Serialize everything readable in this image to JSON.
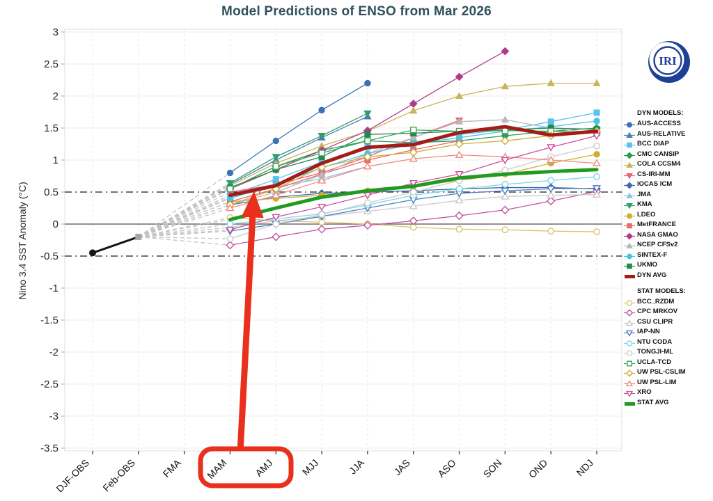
{
  "logo_text": "IRI",
  "annotation": {
    "color": "#e8301c",
    "highlighted_categories": [
      "MAM",
      "AMJ"
    ]
  },
  "chart_data": {
    "type": "line",
    "title": "Model Predictions of ENSO from Mar 2026",
    "ylabel": "Nino 3.4 SST Anomaly (°C)",
    "xlabel": "",
    "categories": [
      "DJF-OBS",
      "Feb-OBS",
      "FMA",
      "MAM",
      "AMJ",
      "MJJ",
      "JJA",
      "JAS",
      "ASO",
      "SON",
      "OND",
      "NDJ"
    ],
    "ylim": [
      -3.5,
      3
    ],
    "ytick_step": 0.5,
    "threshold_lines": [
      0.5,
      -0.5
    ],
    "zero_line": 0,
    "grid": true,
    "legend_position": "right",
    "observations": {
      "name": "OBS",
      "color": "#151515",
      "points": [
        {
          "category": "DJF-OBS",
          "value": -0.45
        },
        {
          "category": "Feb-OBS",
          "value": -0.2
        }
      ]
    },
    "forecast_start_index": 3,
    "fan": {
      "from_category": "Feb-OBS",
      "from_value": -0.2,
      "color": "#c3c3c3"
    },
    "groups": [
      {
        "header": "DYN MODELS:",
        "series": [
          {
            "name": "AUS-ACCESS",
            "color": "#3a72b5",
            "marker": "circle",
            "filled": true,
            "avg": false,
            "values": [
              0.8,
              1.3,
              1.78,
              2.2
            ]
          },
          {
            "name": "AUS-RELATIVE",
            "color": "#4a7fb5",
            "marker": "triangle-up",
            "filled": true,
            "avg": false,
            "values": [
              0.62,
              1.0,
              1.35,
              1.68
            ]
          },
          {
            "name": "BCC DIAP",
            "color": "#5bc2ef",
            "marker": "square",
            "filled": true,
            "avg": false,
            "values": [
              0.45,
              0.7,
              0.97,
              1.2,
              1.28,
              1.4,
              1.47,
              1.6,
              1.74
            ]
          },
          {
            "name": "CMC CANSIP",
            "color": "#279a55",
            "marker": "diamond",
            "filled": true,
            "avg": false,
            "values": [
              0.55,
              0.9,
              1.15,
              1.3,
              1.27,
              1.3,
              1.38,
              1.45,
              1.5
            ]
          },
          {
            "name": "COLA CCSM4",
            "color": "#c9b458",
            "marker": "triangle-up",
            "filled": true,
            "avg": false,
            "values": [
              0.6,
              0.95,
              1.22,
              1.45,
              1.77,
              2.0,
              2.15,
              2.2,
              2.2
            ]
          },
          {
            "name": "CS-IRI-MM",
            "color": "#ef6070",
            "marker": "triangle-down",
            "filled": true,
            "avg": false,
            "values": [
              0.5,
              0.62,
              0.8,
              1.05,
              1.35,
              1.62
            ]
          },
          {
            "name": "IOCAS ICM",
            "color": "#3d68ad",
            "marker": "diamond",
            "filled": true,
            "avg": false,
            "values": [
              0.3,
              0.42,
              0.48,
              0.5,
              0.52,
              0.55,
              0.57,
              0.57,
              0.55
            ]
          },
          {
            "name": "JMA",
            "color": "#85c9e8",
            "marker": "triangle-up",
            "filled": true,
            "avg": false,
            "values": [
              0.42,
              0.58,
              0.71,
              0.9
            ]
          },
          {
            "name": "KMA",
            "color": "#2f9e68",
            "marker": "triangle-down",
            "filled": true,
            "avg": false,
            "values": [
              0.64,
              1.05,
              1.38,
              1.73
            ]
          },
          {
            "name": "LDEO",
            "color": "#d1ac2e",
            "marker": "circle",
            "filled": true,
            "avg": false,
            "values": [
              0.35,
              0.4,
              0.45,
              0.52,
              0.6,
              0.68,
              0.78,
              0.95,
              1.09
            ]
          },
          {
            "name": "MetFRANCE",
            "color": "#e86a6a",
            "marker": "square",
            "filled": true,
            "avg": false,
            "values": [
              0.35,
              0.55,
              0.78,
              1.0,
              1.16,
              1.3
            ]
          },
          {
            "name": "NASA GMAO",
            "color": "#b23a8a",
            "marker": "diamond",
            "filled": true,
            "avg": false,
            "values": [
              0.55,
              0.85,
              1.15,
              1.46,
              1.88,
              2.3,
              2.7
            ]
          },
          {
            "name": "NCEP CFSv2",
            "color": "#b9b9b9",
            "marker": "triangle-up",
            "filled": true,
            "avg": false,
            "values": [
              0.3,
              0.5,
              0.77,
              1.1,
              1.35,
              1.6,
              1.63,
              1.5,
              1.42
            ]
          },
          {
            "name": "SINTEX-F",
            "color": "#49c3e6",
            "marker": "circle",
            "filled": true,
            "avg": false,
            "values": [
              0.4,
              0.62,
              0.88,
              1.1,
              1.25,
              1.35,
              1.45,
              1.52,
              1.61
            ]
          },
          {
            "name": "UKMO",
            "color": "#1f8a4c",
            "marker": "square",
            "filled": true,
            "avg": false,
            "values": [
              0.57,
              0.85,
              1.05,
              1.4,
              1.42,
              1.45,
              1.47,
              1.5,
              1.48
            ]
          },
          {
            "name": "DYN AVG",
            "color": "#a31c15",
            "marker": "avg-line",
            "filled": true,
            "avg": true,
            "values": [
              0.45,
              0.6,
              0.95,
              1.2,
              1.24,
              1.43,
              1.52,
              1.39,
              1.45
            ]
          }
        ]
      },
      {
        "header": "STAT MODELS:",
        "series": [
          {
            "name": "BCC_RZDM",
            "color": "#d9c36a",
            "marker": "circle",
            "filled": false,
            "avg": false,
            "values": [
              0.1,
              0.05,
              0.03,
              0.0,
              -0.05,
              -0.08,
              -0.09,
              -0.11,
              -0.12
            ]
          },
          {
            "name": "CPC MRKOV",
            "color": "#c2549e",
            "marker": "diamond",
            "filled": false,
            "avg": false,
            "values": [
              -0.33,
              -0.2,
              -0.08,
              -0.02,
              0.05,
              0.13,
              0.22,
              0.36,
              0.51
            ]
          },
          {
            "name": "CSU CLIPR",
            "color": "#c9c9c9",
            "marker": "triangle-up",
            "filled": false,
            "avg": false,
            "values": [
              -0.05,
              0.05,
              0.12,
              0.2,
              0.28,
              0.37,
              0.43,
              0.45,
              0.46
            ]
          },
          {
            "name": "IAP-NN",
            "color": "#4d7ebf",
            "marker": "triangle-down",
            "filled": false,
            "avg": false,
            "values": [
              -0.11,
              0.0,
              0.12,
              0.25,
              0.38,
              0.48,
              0.52,
              0.55,
              0.56
            ]
          },
          {
            "name": "NTU CODA",
            "color": "#7fd4ec",
            "marker": "circle",
            "filled": false,
            "avg": false,
            "values": [
              0.0,
              0.08,
              0.16,
              0.3,
              0.45,
              0.55,
              0.62,
              0.68,
              0.74
            ]
          },
          {
            "name": "TONGJI-ML",
            "color": "#cccccc",
            "marker": "circle",
            "filled": false,
            "avg": false,
            "values": [
              -0.23,
              0.0,
              0.15,
              0.33,
              0.5,
              0.68,
              0.84,
              1.05,
              1.22
            ]
          },
          {
            "name": "UCLA-TCD",
            "color": "#3fa45f",
            "marker": "square",
            "filled": false,
            "avg": false,
            "values": [
              0.55,
              0.9,
              1.11,
              1.3,
              1.47,
              1.45,
              1.46,
              1.45,
              1.43
            ]
          },
          {
            "name": "UW PSL-CSLIM",
            "color": "#ccab3c",
            "marker": "diamond",
            "filled": false,
            "avg": false,
            "values": [
              0.3,
              0.55,
              0.89,
              1.05,
              1.12,
              1.25,
              1.3,
              1.38,
              1.45
            ]
          },
          {
            "name": "UW PSL-LIM",
            "color": "#ef8a80",
            "marker": "triangle-up",
            "filled": false,
            "avg": false,
            "values": [
              0.25,
              0.45,
              0.68,
              0.9,
              1.02,
              1.08,
              1.05,
              1.0,
              0.95
            ]
          },
          {
            "name": "XRO",
            "color": "#cf4f9b",
            "marker": "triangle-down",
            "filled": false,
            "avg": false,
            "values": [
              -0.09,
              0.11,
              0.27,
              0.45,
              0.64,
              0.78,
              1.0,
              1.2,
              1.38
            ]
          },
          {
            "name": "STAT AVG",
            "color": "#219a21",
            "marker": "avg-line",
            "filled": true,
            "avg": true,
            "values": [
              0.07,
              0.25,
              0.42,
              0.52,
              0.59,
              0.72,
              0.78,
              0.82,
              0.85
            ]
          }
        ]
      }
    ]
  }
}
